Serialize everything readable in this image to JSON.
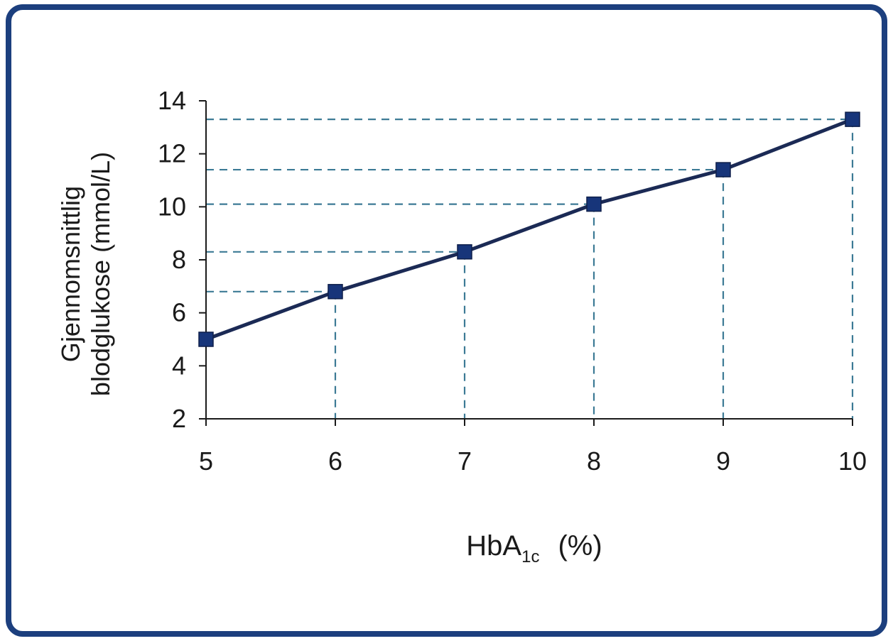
{
  "chart_data": {
    "type": "line",
    "title": "",
    "xlabel": {
      "main": "HbA",
      "subscript": "1c",
      "unit": "(%)"
    },
    "ylabel": [
      "Gjennomsnittlig",
      "blodglukose (mmol/L)"
    ],
    "x": [
      5,
      6,
      7,
      8,
      9,
      10
    ],
    "series": [
      {
        "values": [
          5.0,
          6.8,
          8.3,
          10.1,
          11.4,
          13.3
        ]
      }
    ],
    "xlim": [
      5,
      10
    ],
    "ylim": [
      2,
      14
    ],
    "x_ticks": [
      5,
      6,
      7,
      8,
      9,
      10
    ],
    "y_ticks": [
      2,
      4,
      6,
      8,
      10,
      12,
      14
    ],
    "reference_lines": "dashed",
    "grid": false,
    "legend": "none"
  },
  "colors": {
    "frame": "#1c3f7e",
    "line": "#1b2a55",
    "marker": "#17357a",
    "dashed": "#3c7a95",
    "axis": "#1a1a1a"
  }
}
